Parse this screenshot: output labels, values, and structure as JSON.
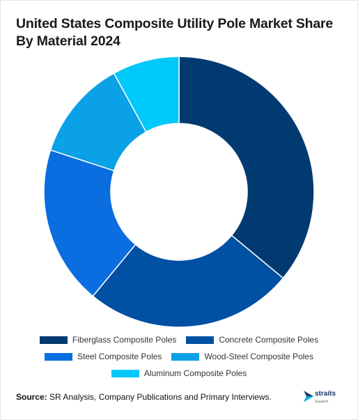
{
  "title": "United States Composite Utility Pole Market Share By Material 2024",
  "source": {
    "label": "Source:",
    "text": " SR Analysis, Company Publications and Primary Interviews."
  },
  "logo": {
    "word": "straits",
    "sub": "research"
  },
  "chart_data": {
    "type": "pie",
    "donut": true,
    "title": "United States Composite Utility Pole Market Share By Material 2024",
    "legend_position": "bottom",
    "categories": [
      "Fiberglass Composite Poles",
      "Concrete Composite Poles",
      "Steel Composite Poles",
      "Wood-Steel Composite Poles",
      "Aluminum Composite Poles"
    ],
    "values": [
      36,
      25,
      19,
      12,
      8
    ],
    "colors": [
      "#003a70",
      "#0050a4",
      "#0a6ee0",
      "#0aa1e6",
      "#00c8f8"
    ]
  }
}
